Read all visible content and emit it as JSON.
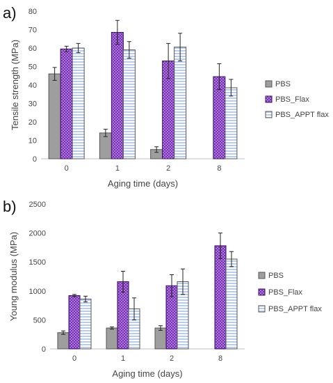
{
  "colors": {
    "PBS": "#9e9e9e",
    "PBS_Flax": "#7a2fb8",
    "PBS_APPT flax": "#b8cdee"
  },
  "chart_data": [
    {
      "panel_label": "a)",
      "type": "bar",
      "xlabel": "Aging time (days)",
      "ylabel": "Tensile strength (MPa)",
      "ylim": [
        0,
        80
      ],
      "yticks": [
        0,
        10,
        20,
        30,
        40,
        50,
        60,
        70,
        80
      ],
      "grid": false,
      "legend_position": "right",
      "categories": [
        "0",
        "1",
        "2",
        "8"
      ],
      "series": [
        {
          "name": "PBS",
          "values": [
            46,
            14,
            5,
            null
          ],
          "errors": [
            3.5,
            2,
            1.5,
            null
          ]
        },
        {
          "name": "PBS_Flax",
          "values": [
            59.5,
            68.5,
            53,
            44.5
          ],
          "errors": [
            1.5,
            6.5,
            9.5,
            7
          ]
        },
        {
          "name": "PBS_APPT flax",
          "values": [
            60,
            59,
            60.5,
            38.5
          ],
          "errors": [
            2.5,
            4.5,
            7.5,
            4.5
          ]
        }
      ]
    },
    {
      "panel_label": "b)",
      "type": "bar",
      "xlabel": "Aging time (days)",
      "ylabel": "Young modulus (MPa)",
      "ylim": [
        0,
        2500
      ],
      "yticks": [
        0,
        500,
        1000,
        1500,
        2000,
        2500
      ],
      "grid": false,
      "legend_position": "right",
      "categories": [
        "0",
        "1",
        "2",
        "8"
      ],
      "series": [
        {
          "name": "PBS",
          "values": [
            280,
            360,
            360,
            null
          ],
          "errors": [
            30,
            20,
            40,
            null
          ]
        },
        {
          "name": "PBS_Flax",
          "values": [
            920,
            1160,
            1090,
            1780
          ],
          "errors": [
            20,
            180,
            190,
            220
          ]
        },
        {
          "name": "PBS_APPT flax",
          "values": [
            860,
            690,
            1160,
            1550
          ],
          "errors": [
            50,
            190,
            220,
            130
          ]
        }
      ]
    }
  ]
}
